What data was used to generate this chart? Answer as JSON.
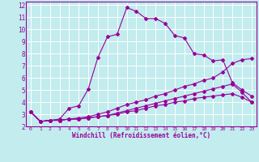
{
  "xlabel": "Windchill (Refroidissement éolien,°C)",
  "xlim": [
    -0.5,
    23.5
  ],
  "ylim": [
    2,
    12.3
  ],
  "xticks": [
    0,
    1,
    2,
    3,
    4,
    5,
    6,
    7,
    8,
    9,
    10,
    11,
    12,
    13,
    14,
    15,
    16,
    17,
    18,
    19,
    20,
    21,
    22,
    23
  ],
  "yticks": [
    2,
    3,
    4,
    5,
    6,
    7,
    8,
    9,
    10,
    11,
    12
  ],
  "bg_color": "#c2ecee",
  "line_color": "#990099",
  "grid_color": "#ffffff",
  "line1_x": [
    0,
    1,
    2,
    3,
    4,
    5,
    6,
    7,
    8,
    9,
    10,
    11,
    12,
    13,
    14,
    15,
    16,
    17,
    18,
    19,
    20,
    21,
    22,
    23
  ],
  "line1_y": [
    3.2,
    2.4,
    2.5,
    2.6,
    3.5,
    3.7,
    5.1,
    7.7,
    9.4,
    9.6,
    11.8,
    11.5,
    10.9,
    10.9,
    10.5,
    9.5,
    9.3,
    8.0,
    7.9,
    7.4,
    7.5,
    5.6,
    5.0,
    4.5
  ],
  "line2_x": [
    0,
    1,
    2,
    3,
    4,
    5,
    6,
    7,
    8,
    9,
    10,
    11,
    12,
    13,
    14,
    15,
    16,
    17,
    18,
    19,
    20,
    21,
    22,
    23
  ],
  "line2_y": [
    3.2,
    2.4,
    2.5,
    2.5,
    2.6,
    2.7,
    2.8,
    3.0,
    3.2,
    3.5,
    3.8,
    4.0,
    4.2,
    4.5,
    4.7,
    5.0,
    5.3,
    5.5,
    5.8,
    6.0,
    6.5,
    7.2,
    7.5,
    7.6
  ],
  "line3_x": [
    0,
    1,
    2,
    3,
    4,
    5,
    6,
    7,
    8,
    9,
    10,
    11,
    12,
    13,
    14,
    15,
    16,
    17,
    18,
    19,
    20,
    21,
    22,
    23
  ],
  "line3_y": [
    3.2,
    2.4,
    2.5,
    2.5,
    2.6,
    2.6,
    2.7,
    2.8,
    2.9,
    3.1,
    3.3,
    3.5,
    3.7,
    3.9,
    4.1,
    4.3,
    4.5,
    4.7,
    4.9,
    5.1,
    5.3,
    5.5,
    4.8,
    4.0
  ],
  "line4_x": [
    0,
    1,
    2,
    3,
    4,
    5,
    6,
    7,
    8,
    9,
    10,
    11,
    12,
    13,
    14,
    15,
    16,
    17,
    18,
    19,
    20,
    21,
    22,
    23
  ],
  "line4_y": [
    3.2,
    2.4,
    2.5,
    2.5,
    2.6,
    2.6,
    2.7,
    2.8,
    2.9,
    3.0,
    3.2,
    3.3,
    3.5,
    3.7,
    3.8,
    4.0,
    4.1,
    4.3,
    4.4,
    4.5,
    4.6,
    4.7,
    4.4,
    4.0
  ]
}
